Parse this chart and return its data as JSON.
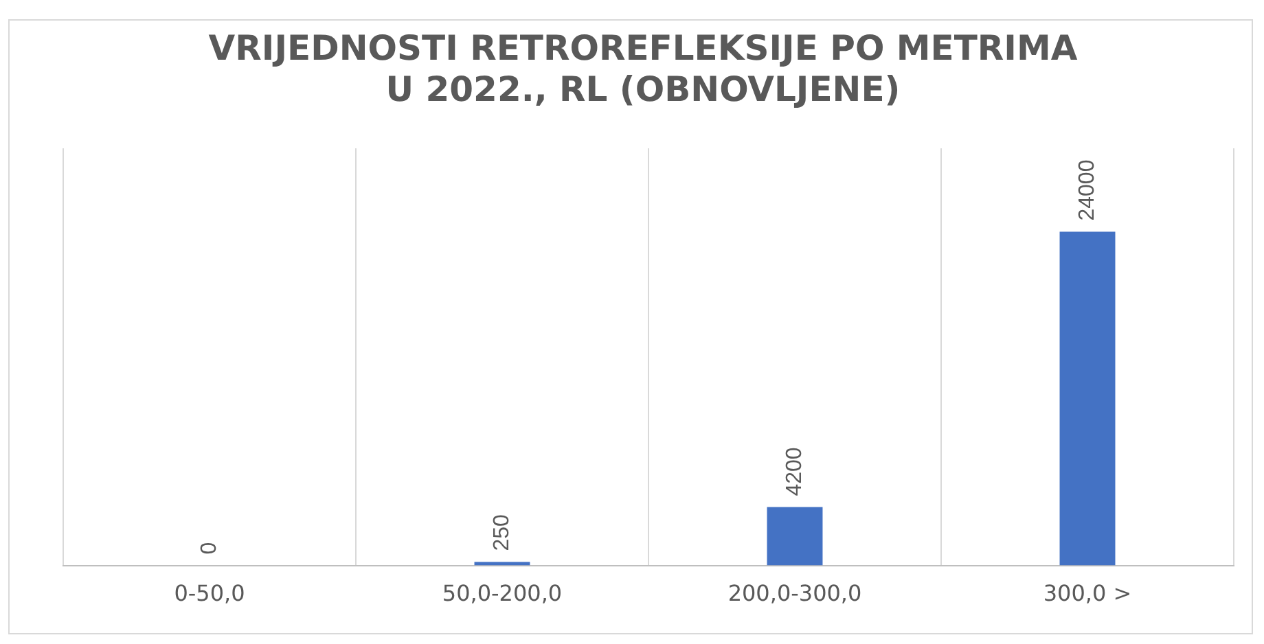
{
  "chart_data": {
    "type": "bar",
    "title": "VRIJEDNOSTI RETROREFLEKSIJE PO METRIMA\nU 2022., RL (OBNOVLJENE)",
    "categories": [
      "0-50,0",
      "50,0-200,0",
      "200,0-300,0",
      "300,0 >"
    ],
    "values": [
      0,
      250,
      4200,
      24000
    ],
    "color": "#4472c4",
    "ylim": [
      0,
      30000
    ],
    "grid": "x",
    "tick_labels": "x",
    "data_labels": true,
    "legend": false
  }
}
